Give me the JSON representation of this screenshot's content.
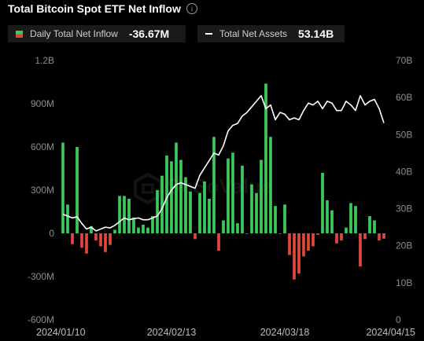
{
  "header": {
    "title": "Total Bitcoin Spot ETF Net Inflow",
    "info_icon": "info-circle-icon"
  },
  "legend": {
    "inflow_label": "Daily Total Net Inflow",
    "inflow_value": "-36.67M",
    "assets_label": "Total Net Assets",
    "assets_value": "53.14B"
  },
  "watermark": "SoSoValue",
  "colors": {
    "positive": "#3cc95a",
    "negative": "#e0473b",
    "line": "#ffffff",
    "background": "#000000"
  },
  "chart_data": {
    "type": "bar",
    "left_axis": {
      "ylim": [
        -600,
        1200
      ],
      "unit": "M",
      "ticks": [
        1200,
        900,
        600,
        300,
        0,
        -300,
        -600
      ],
      "tick_labels": [
        "1.2B",
        "900M",
        "600M",
        "300M",
        "0",
        "-300M",
        "-600M"
      ]
    },
    "right_axis": {
      "ylim": [
        0,
        70
      ],
      "unit": "B",
      "ticks": [
        70,
        60,
        50,
        40,
        30,
        20,
        10,
        0
      ],
      "tick_labels": [
        "70B",
        "60B",
        "50B",
        "40B",
        "30B",
        "20B",
        "10B",
        "0"
      ]
    },
    "x_tick_labels": [
      "2024/01/10",
      "2024/02/13",
      "2024/03/18",
      "2024/04/15"
    ],
    "x_tick_index": [
      -1,
      23,
      47,
      67
    ],
    "series": [
      {
        "name": "Daily Total Net Inflow",
        "axis": "left",
        "values": [
          630,
          200,
          -75,
          600,
          -100,
          -140,
          50,
          -50,
          -90,
          -130,
          -80,
          25,
          260,
          260,
          240,
          110,
          40,
          60,
          40,
          120,
          300,
          400,
          540,
          500,
          630,
          510,
          390,
          290,
          -40,
          280,
          360,
          240,
          670,
          -120,
          90,
          520,
          560,
          70,
          470,
          0,
          340,
          280,
          510,
          1040,
          670,
          190,
          0,
          200,
          -150,
          -320,
          -280,
          -160,
          -120,
          -90,
          -10,
          420,
          230,
          160,
          -70,
          -50,
          40,
          210,
          190,
          -230,
          -40,
          120,
          90,
          -50,
          -37
        ]
      },
      {
        "name": "Total Net Assets",
        "axis": "right",
        "values": [
          28.5,
          28.0,
          27.5,
          27.8,
          26.0,
          24.5,
          25.0,
          24.0,
          24.5,
          25.0,
          24.8,
          25.5,
          26.5,
          27.5,
          27.0,
          27.3,
          27.5,
          27.0,
          27.0,
          27.5,
          28.0,
          30.0,
          33.0,
          35.0,
          36.5,
          37.0,
          36.5,
          36.0,
          35.5,
          39.0,
          41.0,
          43.0,
          45.0,
          44.5,
          47.0,
          51.0,
          52.5,
          53.0,
          55.0,
          56.0,
          57.5,
          59.0,
          60.5,
          57.0,
          58.0,
          54.0,
          56.0,
          55.5,
          54.0,
          54.5,
          54.0,
          56.5,
          58.5,
          58.0,
          59.0,
          57.0,
          59.0,
          58.5,
          56.5,
          56.5,
          59.0,
          58.0,
          56.5,
          60.5,
          58.0,
          59.0,
          59.5,
          57.0,
          53.14
        ]
      }
    ]
  }
}
